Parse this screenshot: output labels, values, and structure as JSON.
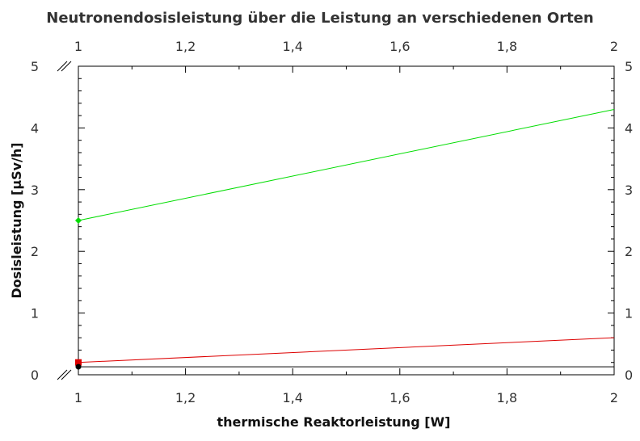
{
  "chart_data": {
    "type": "line",
    "title": "Neutronendosisleistung über die Leistung an verschiedenen Orten",
    "xlabel": "thermische Reaktorleistung [W]",
    "ylabel": "Dosisleistung [µSv/h]",
    "xlim": [
      1,
      2
    ],
    "ylim": [
      0,
      5
    ],
    "x_ticks": [
      "1",
      "1,2",
      "1,4",
      "1,6",
      "1,8",
      "2"
    ],
    "x_tick_values": [
      1,
      1.2,
      1.4,
      1.6,
      1.8,
      2
    ],
    "y_ticks": [
      "0",
      "1",
      "2",
      "3",
      "4",
      "5"
    ],
    "y_tick_values": [
      0,
      1,
      2,
      3,
      4,
      5
    ],
    "grid": false,
    "mirrored_axes": true,
    "axis_breaks": true,
    "series": [
      {
        "color": "#00dd00",
        "marker": "diamond",
        "x": [
          1,
          2
        ],
        "y": [
          2.5,
          4.3
        ]
      },
      {
        "color": "#dd0000",
        "marker": "square",
        "x": [
          1,
          2
        ],
        "y": [
          0.2,
          0.6
        ]
      },
      {
        "color": "#000000",
        "marker": "circle",
        "x": [
          1,
          2
        ],
        "y": [
          0.13,
          0.13
        ]
      }
    ]
  }
}
